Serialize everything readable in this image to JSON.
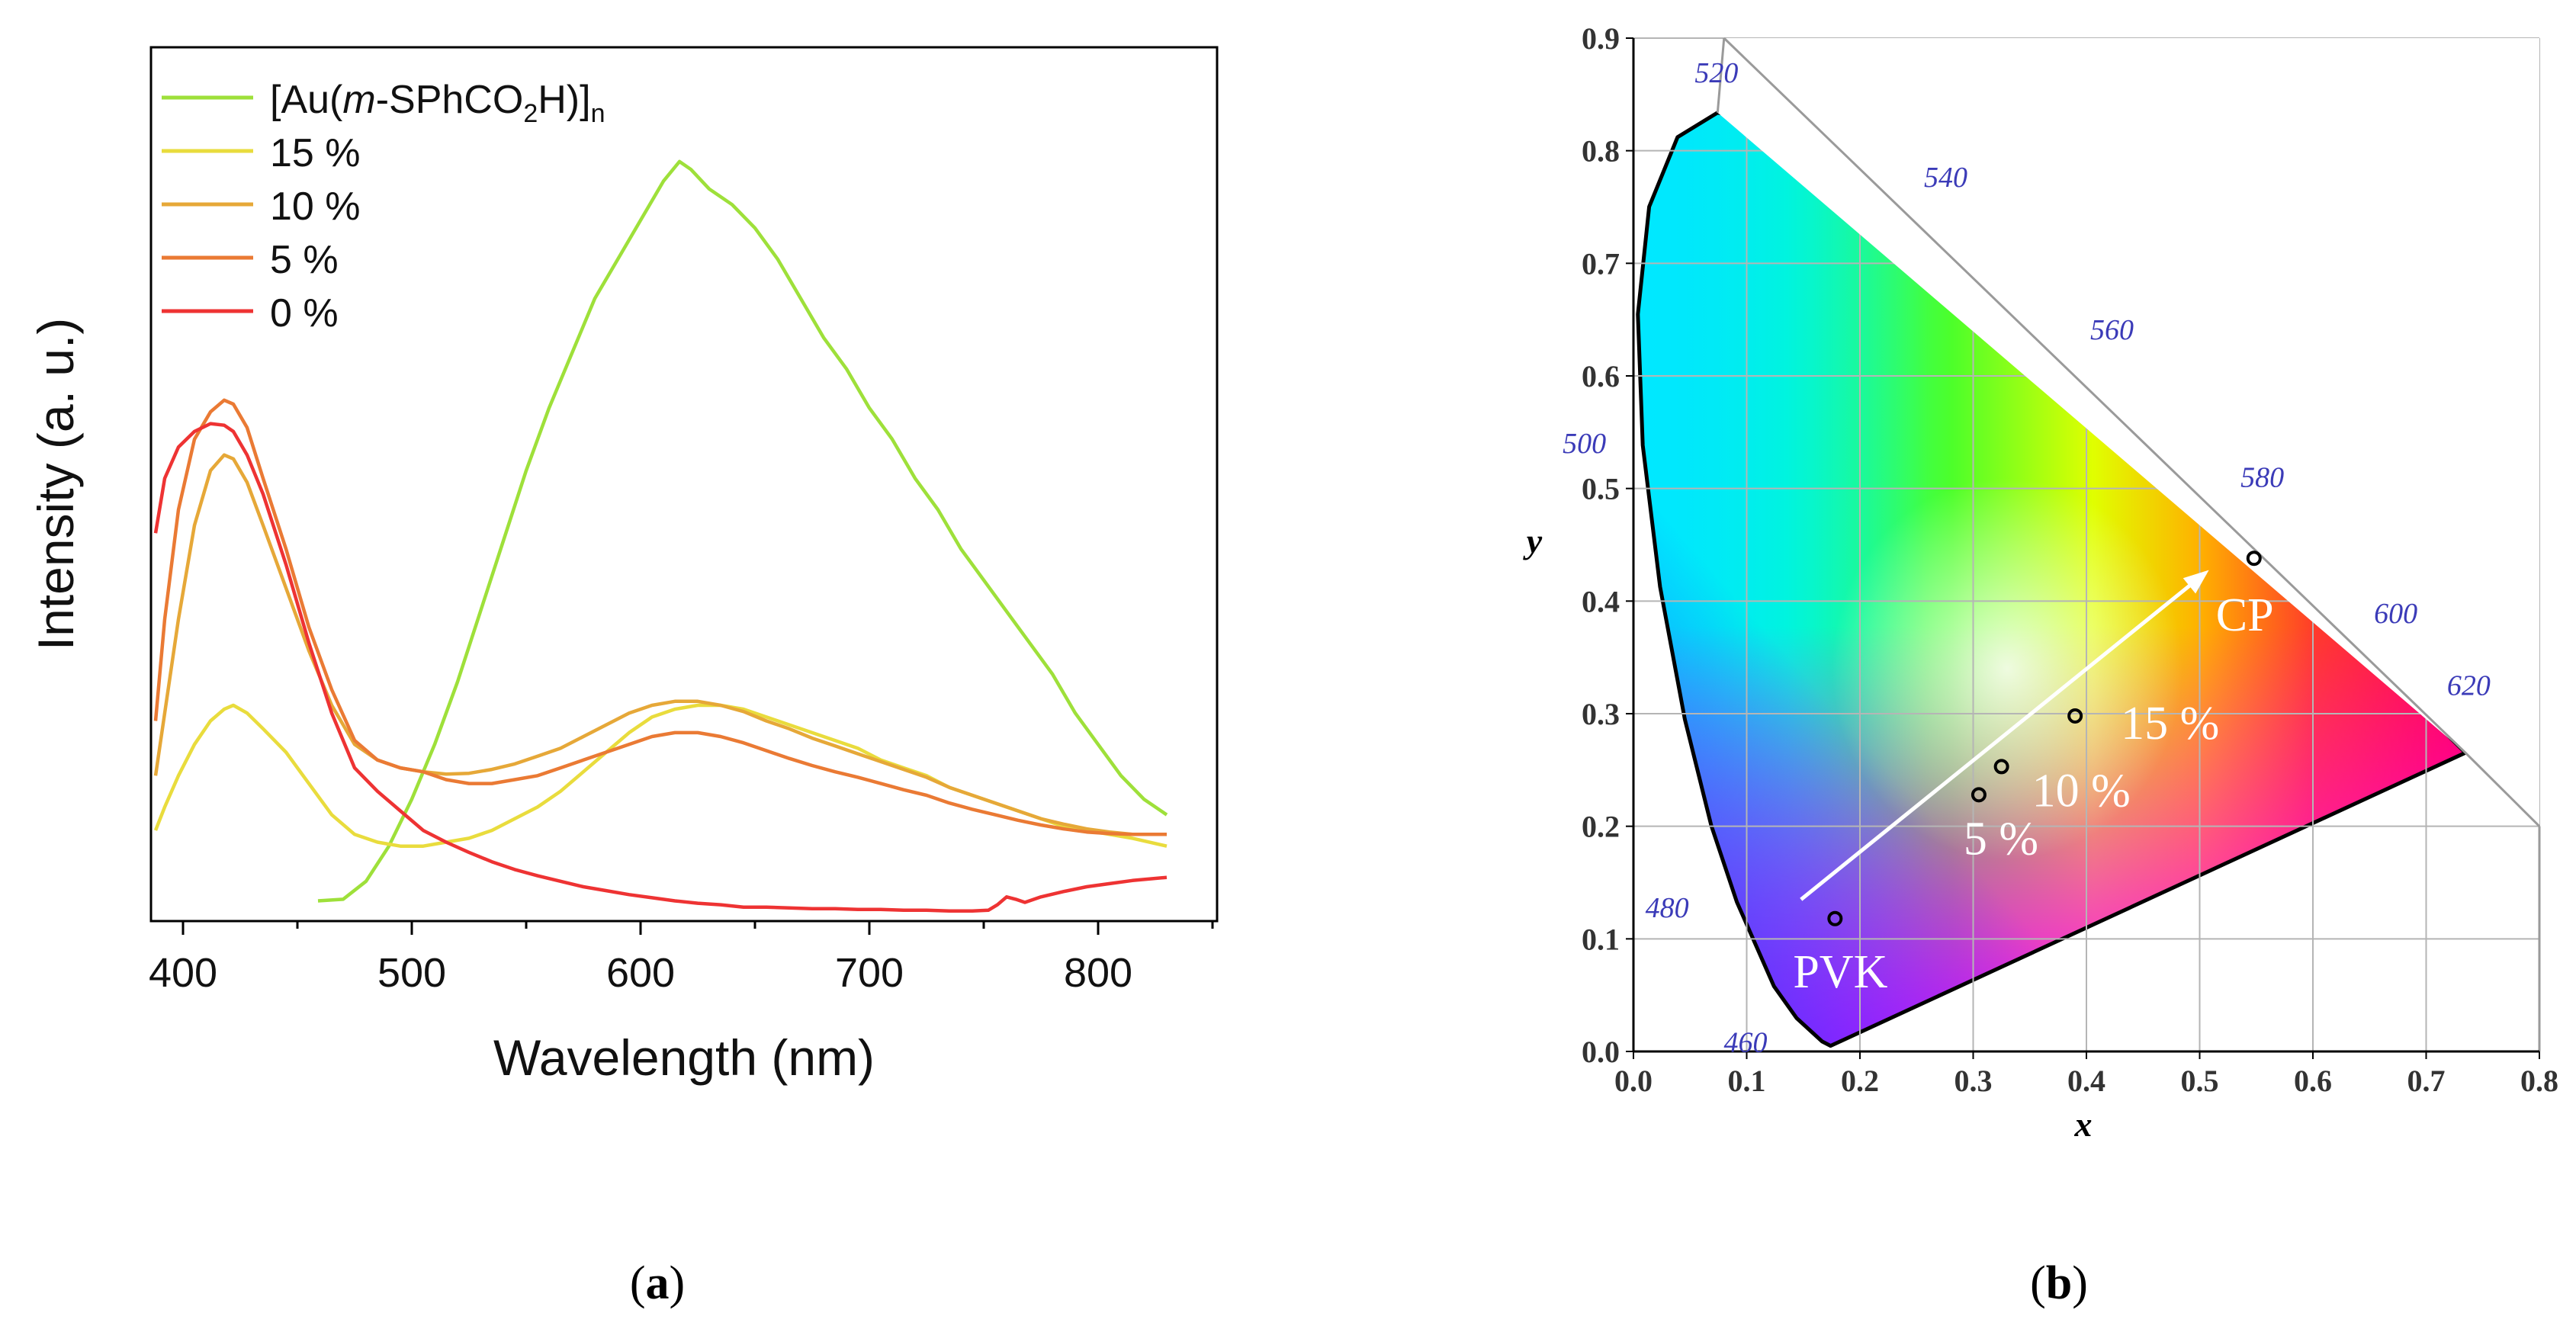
{
  "chart_data": [
    {
      "panel": "a",
      "type": "line",
      "caption_open": "(",
      "caption_letter": "a",
      "caption_close": ")",
      "xlabel": "Wavelength (nm)",
      "ylabel": "Intensity (a. u.)",
      "xlim": [
        386,
        852
      ],
      "ylim": [
        0,
        1.0
      ],
      "xticks": [
        400,
        500,
        600,
        700,
        800
      ],
      "yticks_shown": false,
      "legend_position": "top-left",
      "series": [
        {
          "name": "[Au(m-SPhCO2H)]n",
          "label_parts": [
            "[Au(",
            "m",
            "-SPhCO",
            "2",
            "H)]",
            "n"
          ],
          "color": "#9ee03a",
          "points": [
            [
              459,
              0.02
            ],
            [
              470,
              0.022
            ],
            [
              480,
              0.045
            ],
            [
              490,
              0.09
            ],
            [
              500,
              0.15
            ],
            [
              510,
              0.22
            ],
            [
              520,
              0.3
            ],
            [
              530,
              0.39
            ],
            [
              540,
              0.48
            ],
            [
              550,
              0.57
            ],
            [
              560,
              0.65
            ],
            [
              570,
              0.72
            ],
            [
              580,
              0.79
            ],
            [
              590,
              0.84
            ],
            [
              600,
              0.89
            ],
            [
              610,
              0.94
            ],
            [
              617,
              0.965
            ],
            [
              622,
              0.955
            ],
            [
              630,
              0.93
            ],
            [
              640,
              0.91
            ],
            [
              650,
              0.88
            ],
            [
              660,
              0.84
            ],
            [
              670,
              0.79
            ],
            [
              680,
              0.74
            ],
            [
              690,
              0.7
            ],
            [
              700,
              0.65
            ],
            [
              710,
              0.61
            ],
            [
              720,
              0.56
            ],
            [
              730,
              0.52
            ],
            [
              740,
              0.47
            ],
            [
              750,
              0.43
            ],
            [
              760,
              0.39
            ],
            [
              770,
              0.35
            ],
            [
              780,
              0.31
            ],
            [
              790,
              0.26
            ],
            [
              800,
              0.22
            ],
            [
              810,
              0.18
            ],
            [
              820,
              0.15
            ],
            [
              830,
              0.13
            ]
          ]
        },
        {
          "name": "15 %",
          "label_parts": [
            "15 %"
          ],
          "color": "#e9dc3d",
          "points": [
            [
              388,
              0.11
            ],
            [
              392,
              0.14
            ],
            [
              398,
              0.18
            ],
            [
              405,
              0.22
            ],
            [
              412,
              0.25
            ],
            [
              418,
              0.265
            ],
            [
              422,
              0.27
            ],
            [
              428,
              0.26
            ],
            [
              435,
              0.24
            ],
            [
              445,
              0.21
            ],
            [
              455,
              0.17
            ],
            [
              465,
              0.13
            ],
            [
              475,
              0.105
            ],
            [
              485,
              0.095
            ],
            [
              495,
              0.09
            ],
            [
              505,
              0.09
            ],
            [
              515,
              0.095
            ],
            [
              525,
              0.1
            ],
            [
              535,
              0.11
            ],
            [
              545,
              0.125
            ],
            [
              555,
              0.14
            ],
            [
              565,
              0.16
            ],
            [
              575,
              0.185
            ],
            [
              585,
              0.21
            ],
            [
              595,
              0.235
            ],
            [
              605,
              0.255
            ],
            [
              615,
              0.265
            ],
            [
              625,
              0.27
            ],
            [
              635,
              0.27
            ],
            [
              645,
              0.265
            ],
            [
              655,
              0.255
            ],
            [
              665,
              0.245
            ],
            [
              675,
              0.235
            ],
            [
              685,
              0.225
            ],
            [
              695,
              0.215
            ],
            [
              705,
              0.2
            ],
            [
              715,
              0.19
            ],
            [
              725,
              0.18
            ],
            [
              735,
              0.165
            ],
            [
              745,
              0.155
            ],
            [
              755,
              0.145
            ],
            [
              765,
              0.135
            ],
            [
              775,
              0.125
            ],
            [
              785,
              0.115
            ],
            [
              795,
              0.11
            ],
            [
              805,
              0.105
            ],
            [
              815,
              0.1
            ],
            [
              830,
              0.09
            ]
          ]
        },
        {
          "name": "10 %",
          "label_parts": [
            "10 %"
          ],
          "color": "#e6a838",
          "points": [
            [
              388,
              0.18
            ],
            [
              392,
              0.26
            ],
            [
              398,
              0.38
            ],
            [
              405,
              0.5
            ],
            [
              412,
              0.57
            ],
            [
              418,
              0.59
            ],
            [
              422,
              0.585
            ],
            [
              428,
              0.555
            ],
            [
              435,
              0.5
            ],
            [
              445,
              0.42
            ],
            [
              455,
              0.34
            ],
            [
              465,
              0.27
            ],
            [
              475,
              0.22
            ],
            [
              485,
              0.2
            ],
            [
              495,
              0.19
            ],
            [
              505,
              0.185
            ],
            [
              515,
              0.182
            ],
            [
              525,
              0.183
            ],
            [
              535,
              0.188
            ],
            [
              545,
              0.195
            ],
            [
              555,
              0.205
            ],
            [
              565,
              0.215
            ],
            [
              575,
              0.23
            ],
            [
              585,
              0.245
            ],
            [
              595,
              0.26
            ],
            [
              605,
              0.27
            ],
            [
              615,
              0.275
            ],
            [
              625,
              0.275
            ],
            [
              635,
              0.27
            ],
            [
              645,
              0.262
            ],
            [
              655,
              0.25
            ],
            [
              665,
              0.24
            ],
            [
              675,
              0.228
            ],
            [
              685,
              0.218
            ],
            [
              695,
              0.208
            ],
            [
              705,
              0.198
            ],
            [
              715,
              0.188
            ],
            [
              725,
              0.178
            ],
            [
              735,
              0.165
            ],
            [
              745,
              0.155
            ],
            [
              755,
              0.145
            ],
            [
              765,
              0.135
            ],
            [
              775,
              0.125
            ],
            [
              785,
              0.118
            ],
            [
              795,
              0.112
            ],
            [
              805,
              0.108
            ],
            [
              815,
              0.105
            ],
            [
              830,
              0.105
            ]
          ]
        },
        {
          "name": "5 %",
          "label_parts": [
            "5 %"
          ],
          "color": "#ea7a34",
          "points": [
            [
              388,
              0.25
            ],
            [
              392,
              0.38
            ],
            [
              398,
              0.52
            ],
            [
              405,
              0.61
            ],
            [
              412,
              0.645
            ],
            [
              418,
              0.66
            ],
            [
              422,
              0.655
            ],
            [
              428,
              0.625
            ],
            [
              435,
              0.56
            ],
            [
              445,
              0.47
            ],
            [
              455,
              0.37
            ],
            [
              465,
              0.29
            ],
            [
              475,
              0.225
            ],
            [
              485,
              0.2
            ],
            [
              495,
              0.19
            ],
            [
              505,
              0.185
            ],
            [
              515,
              0.175
            ],
            [
              525,
              0.17
            ],
            [
              535,
              0.17
            ],
            [
              545,
              0.175
            ],
            [
              555,
              0.18
            ],
            [
              565,
              0.19
            ],
            [
              575,
              0.2
            ],
            [
              585,
              0.21
            ],
            [
              595,
              0.22
            ],
            [
              605,
              0.23
            ],
            [
              615,
              0.235
            ],
            [
              625,
              0.235
            ],
            [
              635,
              0.23
            ],
            [
              645,
              0.222
            ],
            [
              655,
              0.212
            ],
            [
              665,
              0.202
            ],
            [
              675,
              0.193
            ],
            [
              685,
              0.185
            ],
            [
              695,
              0.178
            ],
            [
              705,
              0.17
            ],
            [
              715,
              0.162
            ],
            [
              725,
              0.155
            ],
            [
              735,
              0.145
            ],
            [
              745,
              0.137
            ],
            [
              755,
              0.13
            ],
            [
              765,
              0.123
            ],
            [
              775,
              0.117
            ],
            [
              785,
              0.112
            ],
            [
              795,
              0.108
            ],
            [
              805,
              0.106
            ],
            [
              815,
              0.105
            ],
            [
              830,
              0.105
            ]
          ]
        },
        {
          "name": "0 %",
          "label_parts": [
            "0 %"
          ],
          "color": "#ee3333",
          "points": [
            [
              388,
              0.49
            ],
            [
              392,
              0.56
            ],
            [
              398,
              0.6
            ],
            [
              405,
              0.62
            ],
            [
              412,
              0.63
            ],
            [
              418,
              0.628
            ],
            [
              422,
              0.62
            ],
            [
              428,
              0.59
            ],
            [
              435,
              0.54
            ],
            [
              445,
              0.45
            ],
            [
              455,
              0.35
            ],
            [
              465,
              0.26
            ],
            [
              475,
              0.19
            ],
            [
              485,
              0.16
            ],
            [
              495,
              0.135
            ],
            [
              505,
              0.11
            ],
            [
              515,
              0.095
            ],
            [
              525,
              0.082
            ],
            [
              535,
              0.07
            ],
            [
              545,
              0.06
            ],
            [
              555,
              0.052
            ],
            [
              565,
              0.045
            ],
            [
              575,
              0.038
            ],
            [
              585,
              0.033
            ],
            [
              595,
              0.028
            ],
            [
              605,
              0.024
            ],
            [
              615,
              0.02
            ],
            [
              625,
              0.017
            ],
            [
              635,
              0.015
            ],
            [
              645,
              0.012
            ],
            [
              655,
              0.012
            ],
            [
              665,
              0.011
            ],
            [
              675,
              0.01
            ],
            [
              685,
              0.01
            ],
            [
              695,
              0.009
            ],
            [
              705,
              0.009
            ],
            [
              715,
              0.008
            ],
            [
              725,
              0.008
            ],
            [
              735,
              0.007
            ],
            [
              745,
              0.007
            ],
            [
              752,
              0.008
            ],
            [
              756,
              0.015
            ],
            [
              760,
              0.025
            ],
            [
              764,
              0.022
            ],
            [
              768,
              0.018
            ],
            [
              775,
              0.025
            ],
            [
              785,
              0.032
            ],
            [
              795,
              0.038
            ],
            [
              805,
              0.042
            ],
            [
              815,
              0.046
            ],
            [
              830,
              0.05
            ]
          ]
        }
      ]
    },
    {
      "panel": "b",
      "type": "scatter",
      "caption_open": "(",
      "caption_letter": "b",
      "caption_close": ")",
      "xlabel": "x",
      "ylabel": "y",
      "xlim": [
        0.0,
        0.8
      ],
      "ylim": [
        0.0,
        0.9
      ],
      "xtick_labels": [
        "0.0",
        "0.1",
        "0.2",
        "0.3",
        "0.4",
        "0.5",
        "0.6",
        "0.7",
        "0.8"
      ],
      "ytick_labels": [
        "0.0",
        "0.1",
        "0.2",
        "0.3",
        "0.4",
        "0.5",
        "0.6",
        "0.7",
        "0.8",
        "0.9"
      ],
      "grid": true,
      "locus_wavelength_labels": [
        {
          "label": "460",
          "x": 0.1741,
          "y": 0.005
        },
        {
          "label": "480",
          "x": 0.0913,
          "y": 0.1327
        },
        {
          "label": "500",
          "x": 0.0082,
          "y": 0.5384
        },
        {
          "label": "520",
          "x": 0.0743,
          "y": 0.8338
        },
        {
          "label": "540",
          "x": 0.2296,
          "y": 0.7543
        },
        {
          "label": "560",
          "x": 0.3731,
          "y": 0.6245
        },
        {
          "label": "580",
          "x": 0.5125,
          "y": 0.4866
        },
        {
          "label": "600",
          "x": 0.627,
          "y": 0.3725
        },
        {
          "label": "620",
          "x": 0.6915,
          "y": 0.3083
        }
      ],
      "points": [
        {
          "label": "PVK",
          "x": 0.178,
          "y": 0.118
        },
        {
          "label": "5 %",
          "x": 0.305,
          "y": 0.228
        },
        {
          "label": "10 %",
          "x": 0.325,
          "y": 0.253
        },
        {
          "label": "15 %",
          "x": 0.39,
          "y": 0.298
        },
        {
          "label": "CP",
          "x": 0.548,
          "y": 0.438
        }
      ],
      "arrow": {
        "from": [
          0.148,
          0.135
        ],
        "to": [
          0.505,
          0.425
        ]
      }
    }
  ]
}
